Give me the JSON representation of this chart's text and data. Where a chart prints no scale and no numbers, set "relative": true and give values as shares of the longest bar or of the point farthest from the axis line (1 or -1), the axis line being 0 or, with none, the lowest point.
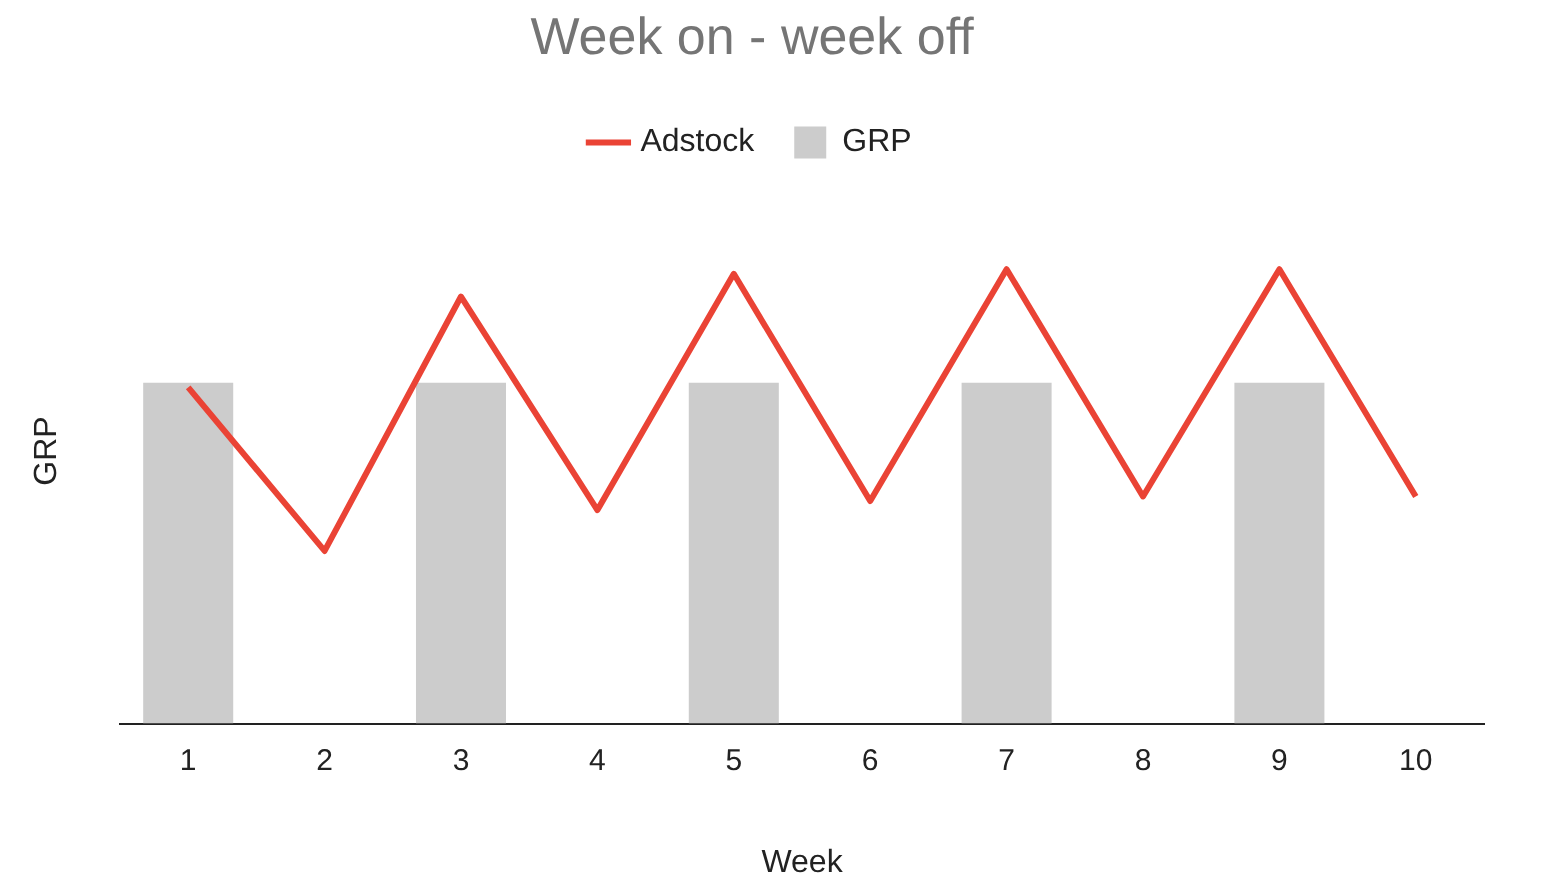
{
  "chart_data": {
    "type": "bar",
    "title": "Week on - week off",
    "xlabel": "Week",
    "ylabel": "GRP",
    "relative": true,
    "legend": "top",
    "grid": false,
    "categories": [
      "1",
      "2",
      "3",
      "4",
      "5",
      "6",
      "7",
      "8",
      "9",
      "10"
    ],
    "series": [
      {
        "name": "GRP",
        "type": "bar",
        "color": "#cccccc",
        "values": [
          0.75,
          0,
          0.75,
          0,
          0.75,
          0,
          0.75,
          0,
          0.75,
          0
        ]
      },
      {
        "name": "Adstock",
        "type": "line",
        "color": "#ea4335",
        "values": [
          0.74,
          0.38,
          0.94,
          0.47,
          0.99,
          0.49,
          1,
          0.5,
          1,
          0.5
        ]
      }
    ]
  }
}
